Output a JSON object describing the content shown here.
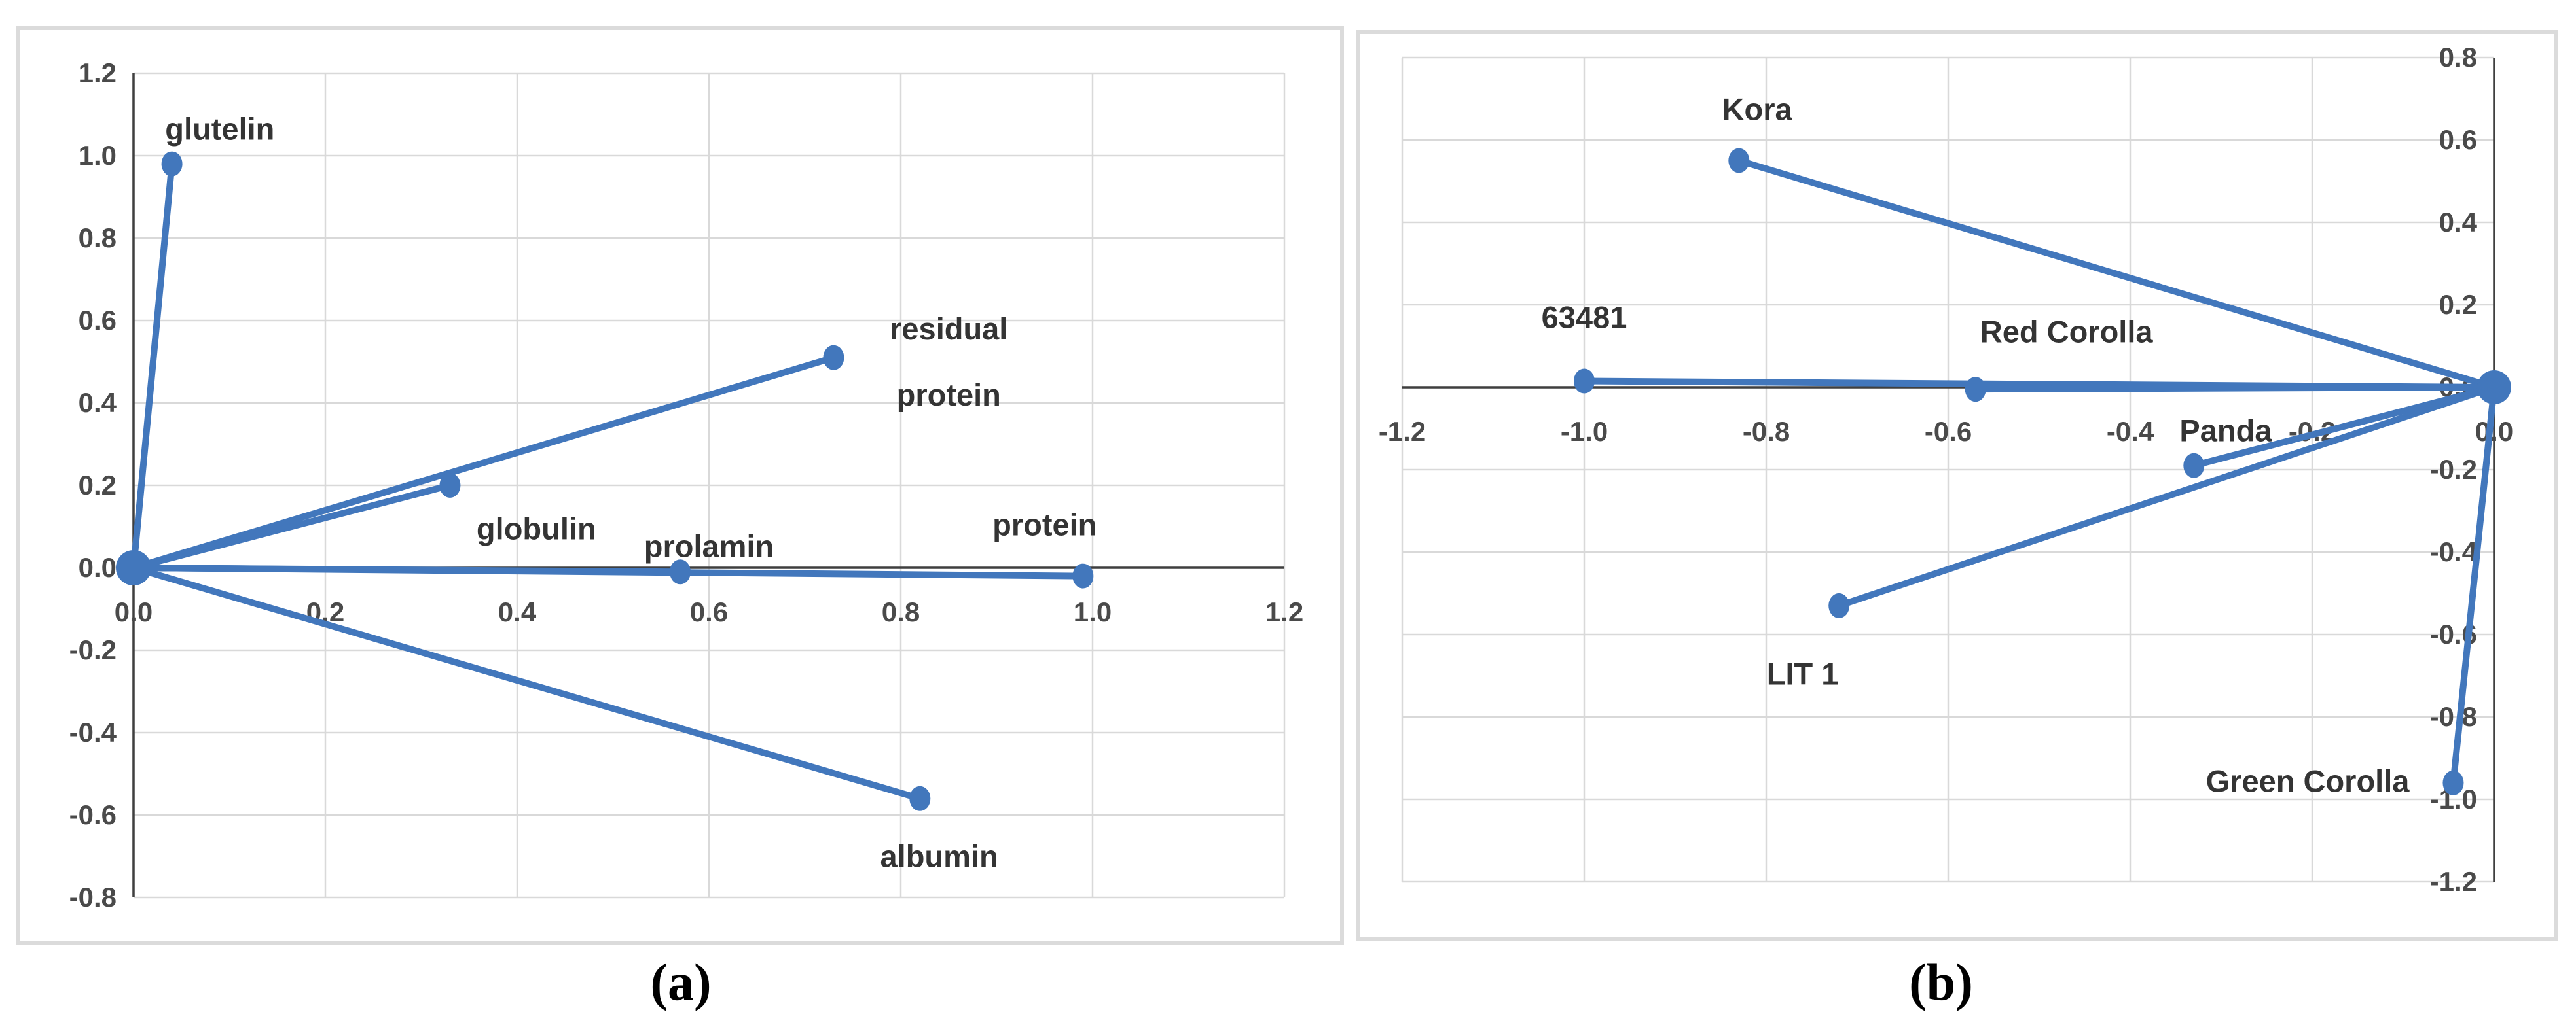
{
  "figure": {
    "background": "#ffffff",
    "caption_a": "(a)",
    "caption_b": "(b)"
  },
  "colors": {
    "series_blue": "#4277BC",
    "gridline": "#D9D9D9",
    "axis_line": "#3F3F3F",
    "tick_text": "#4A4A4A",
    "label_text": "#343434",
    "panel_border": "#DBDBDB"
  },
  "chart_data": [
    {
      "type": "scatter",
      "id": "a",
      "caption": "(a)",
      "title": "",
      "xlabel": "",
      "ylabel": "",
      "xlim": [
        0.0,
        1.2
      ],
      "ylim": [
        -0.8,
        1.2
      ],
      "grid": true,
      "vectors_from_origin": true,
      "origin": {
        "x": 0.0,
        "y": 0.0
      },
      "xticks": [
        {
          "value": 0.0,
          "label": "0.0"
        },
        {
          "value": 0.2,
          "label": "0.2"
        },
        {
          "value": 0.4,
          "label": "0.4"
        },
        {
          "value": 0.6,
          "label": "0.6"
        },
        {
          "value": 0.8,
          "label": "0.8"
        },
        {
          "value": 1.0,
          "label": "1.0"
        },
        {
          "value": 1.2,
          "label": "1.2"
        }
      ],
      "yticks": [
        {
          "value": 1.2,
          "label": "1.2"
        },
        {
          "value": 1.0,
          "label": "1.0"
        },
        {
          "value": 0.8,
          "label": "0.8"
        },
        {
          "value": 0.6,
          "label": "0.6"
        },
        {
          "value": 0.4,
          "label": "0.4"
        },
        {
          "value": 0.2,
          "label": "0.2"
        },
        {
          "value": 0.0,
          "label": "0.0"
        },
        {
          "value": -0.2,
          "label": "-0.2"
        },
        {
          "value": -0.4,
          "label": "-0.4"
        },
        {
          "value": -0.6,
          "label": "-0.6"
        },
        {
          "value": -0.8,
          "label": "-0.8"
        }
      ],
      "points": [
        {
          "label": "glutelin",
          "lines": [
            "glutelin"
          ],
          "x": 0.04,
          "y": 0.98,
          "label_at": {
            "x": 0.09,
            "y": 1.065
          }
        },
        {
          "label": "residual protein",
          "lines": [
            "residual",
            "protein"
          ],
          "x": 0.73,
          "y": 0.51,
          "label_at": {
            "x": 0.85,
            "y": 0.5
          }
        },
        {
          "label": "globulin",
          "lines": [
            "globulin"
          ],
          "x": 0.33,
          "y": 0.2,
          "label_at": {
            "x": 0.42,
            "y": 0.095
          }
        },
        {
          "label": "prolamin",
          "lines": [
            "prolamin"
          ],
          "x": 0.57,
          "y": -0.01,
          "label_at": {
            "x": 0.6,
            "y": 0.052
          }
        },
        {
          "label": "protein",
          "lines": [
            "protein"
          ],
          "x": 0.99,
          "y": -0.02,
          "label_at": {
            "x": 0.95,
            "y": 0.105
          }
        },
        {
          "label": "albumin",
          "lines": [
            "albumin"
          ],
          "x": 0.82,
          "y": -0.56,
          "label_at": {
            "x": 0.84,
            "y": -0.7
          }
        }
      ]
    },
    {
      "type": "scatter",
      "id": "b",
      "caption": "(b)",
      "title": "",
      "xlabel": "",
      "ylabel": "",
      "xlim": [
        -1.2,
        0.0
      ],
      "ylim": [
        -1.2,
        0.8
      ],
      "grid": true,
      "vectors_from_origin": true,
      "origin": {
        "x": 0.0,
        "y": 0.0
      },
      "xticks": [
        {
          "value": -1.2,
          "label": "-1.2"
        },
        {
          "value": -1.0,
          "label": "-1.0"
        },
        {
          "value": -0.8,
          "label": "-0.8"
        },
        {
          "value": -0.6,
          "label": "-0.6"
        },
        {
          "value": -0.4,
          "label": "-0.4"
        },
        {
          "value": -0.2,
          "label": "-0.2"
        },
        {
          "value": 0.0,
          "label": "0.0"
        }
      ],
      "yticks": [
        {
          "value": 0.8,
          "label": "0.8"
        },
        {
          "value": 0.6,
          "label": "0.6"
        },
        {
          "value": 0.4,
          "label": "0.4"
        },
        {
          "value": 0.2,
          "label": "0.2"
        },
        {
          "value": 0.0,
          "label": "0.0"
        },
        {
          "value": -0.2,
          "label": "-0.2"
        },
        {
          "value": -0.4,
          "label": "-0.4"
        },
        {
          "value": -0.6,
          "label": "-0.6"
        },
        {
          "value": -0.8,
          "label": "-0.8"
        },
        {
          "value": -1.0,
          "label": "-1.0"
        },
        {
          "value": -1.2,
          "label": "-1.2"
        }
      ],
      "points": [
        {
          "label": "Kora",
          "lines": [
            "Kora"
          ],
          "x": -0.83,
          "y": 0.55,
          "label_at": {
            "x": -0.81,
            "y": 0.675
          }
        },
        {
          "label": "63481",
          "lines": [
            "63481"
          ],
          "x": -1.0,
          "y": 0.015,
          "label_at": {
            "x": -1.0,
            "y": 0.17
          }
        },
        {
          "label": "Red Corolla",
          "lines": [
            "Red Corolla"
          ],
          "x": -0.57,
          "y": -0.005,
          "label_at": {
            "x": -0.47,
            "y": 0.135
          }
        },
        {
          "label": "Panda",
          "lines": [
            "Panda"
          ],
          "x": -0.33,
          "y": -0.19,
          "label_at": {
            "x": -0.295,
            "y": -0.105
          }
        },
        {
          "label": "LIT 1",
          "lines": [
            "LIT 1"
          ],
          "x": -0.72,
          "y": -0.53,
          "label_at": {
            "x": -0.76,
            "y": -0.695
          }
        },
        {
          "label": "Green Corolla",
          "lines": [
            "Green Corolla"
          ],
          "x": -0.045,
          "y": -0.96,
          "label_at": {
            "x": -0.205,
            "y": -0.955
          }
        }
      ]
    }
  ]
}
